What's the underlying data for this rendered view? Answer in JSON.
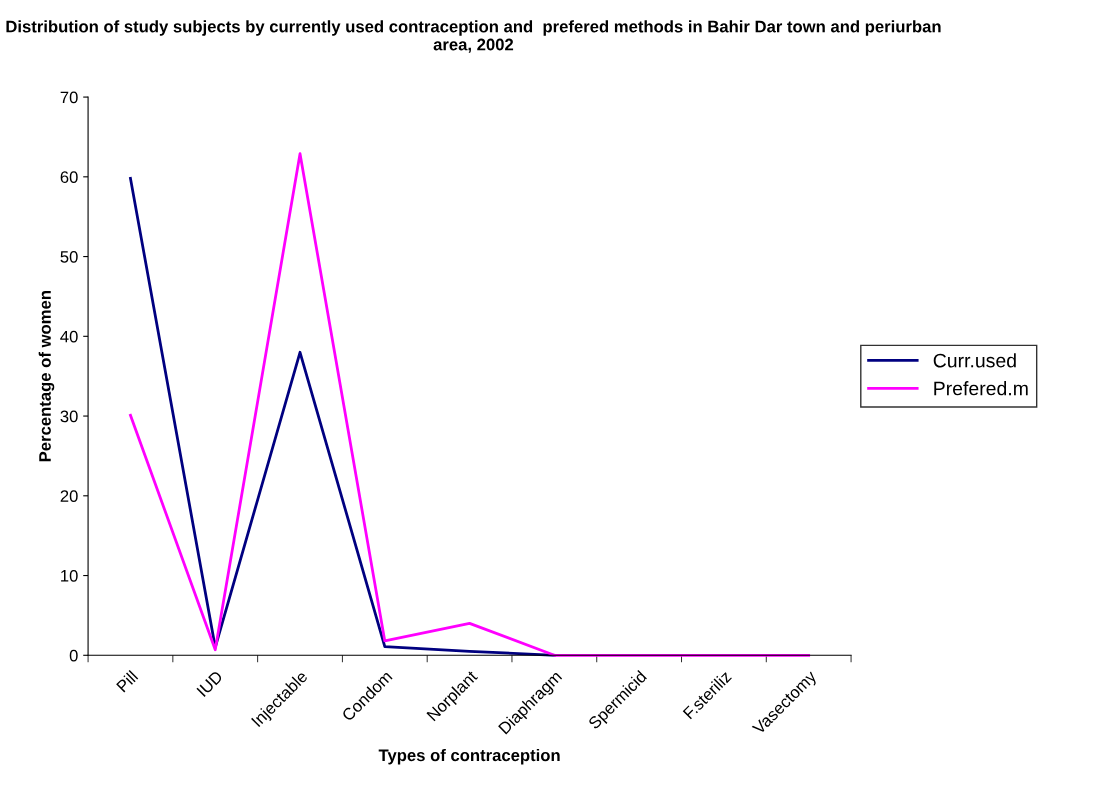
{
  "chart_data": {
    "type": "line",
    "title": "Distribution of study subjects by currently used contraception and  prefered methods in Bahir Dar town and periurban area, 2002",
    "xlabel": "Types of contraception",
    "ylabel": "Percentage of women",
    "categories": [
      "Pill",
      "IUD",
      "Injectable",
      "Condom",
      "Norplant",
      "Diaphragm",
      "Spermicid",
      "F.steriliz",
      "Vasectomy"
    ],
    "series": [
      {
        "name": "Curr.used",
        "color": "#000080",
        "values": [
          59.8,
          1,
          38,
          1.1,
          0.5,
          0,
          null,
          null,
          null
        ]
      },
      {
        "name": "Prefered.m",
        "color": "#ff00ff",
        "values": [
          30.1,
          0.7,
          62.9,
          1.8,
          4,
          0,
          0,
          0,
          0
        ]
      }
    ],
    "ylim": [
      0,
      70
    ],
    "yticks": [
      0,
      10,
      20,
      30,
      40,
      50,
      60,
      70
    ],
    "grid": false,
    "legend": "right",
    "marker": "none",
    "line_style": "solid"
  }
}
